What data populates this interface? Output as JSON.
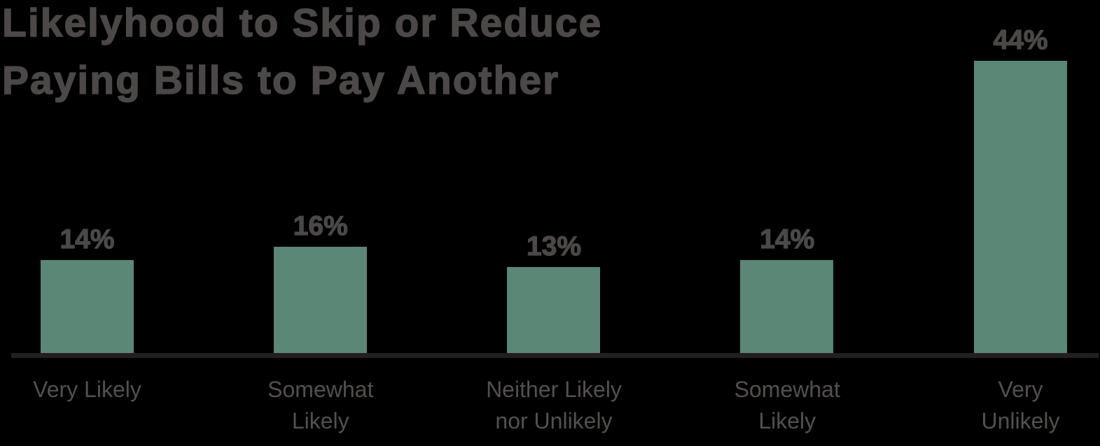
{
  "chart_data": {
    "type": "bar",
    "title": "Likelyhood to Skip or Reduce\nPaying Bills to Pay Another",
    "categories": [
      "Very Likely",
      "Somewhat\nLikely",
      "Neither Likely\nnor Unlikely",
      "Somewhat\nLikely",
      "Very\nUnlikely"
    ],
    "values": [
      14,
      16,
      13,
      14,
      44
    ],
    "value_labels": [
      "14%",
      "16%",
      "13%",
      "14%",
      "44%"
    ],
    "xlabel": "",
    "ylabel": "",
    "ylim": [
      0,
      50
    ],
    "grid": false,
    "legend": "none",
    "axis_ticks_visible": false,
    "colors": {
      "background": "#000000",
      "bar": "#5b8777",
      "title": "#4c4847",
      "value_label": "#4c4847",
      "category_label": "#54504e",
      "axis_line": "#231f20"
    }
  }
}
